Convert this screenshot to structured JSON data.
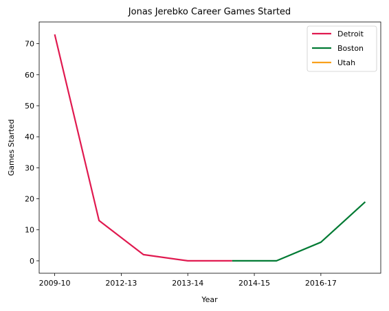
{
  "chart_data": {
    "type": "line",
    "title": "Jonas Jerebko Career Games Started",
    "xlabel": "Year",
    "ylabel": "Games Started",
    "x_ticks": [
      "2009-10",
      "2012-13",
      "2013-14",
      "2014-15",
      "2016-17"
    ],
    "y_ticks": [
      0,
      10,
      20,
      30,
      40,
      50,
      60,
      70
    ],
    "ylim": [
      -4,
      77
    ],
    "grid": false,
    "legend_placement": "top-right",
    "series": [
      {
        "name": "Detroit",
        "color": "#e0194f",
        "x": [
          0,
          1,
          2,
          3,
          4
        ],
        "y": [
          73,
          13,
          2,
          0,
          0
        ]
      },
      {
        "name": "Boston",
        "color": "#007a33",
        "x": [
          4,
          5,
          6,
          7
        ],
        "y": [
          0,
          0,
          6,
          19
        ]
      },
      {
        "name": "Utah",
        "color": "#f9a01b",
        "x": [],
        "y": []
      }
    ]
  }
}
